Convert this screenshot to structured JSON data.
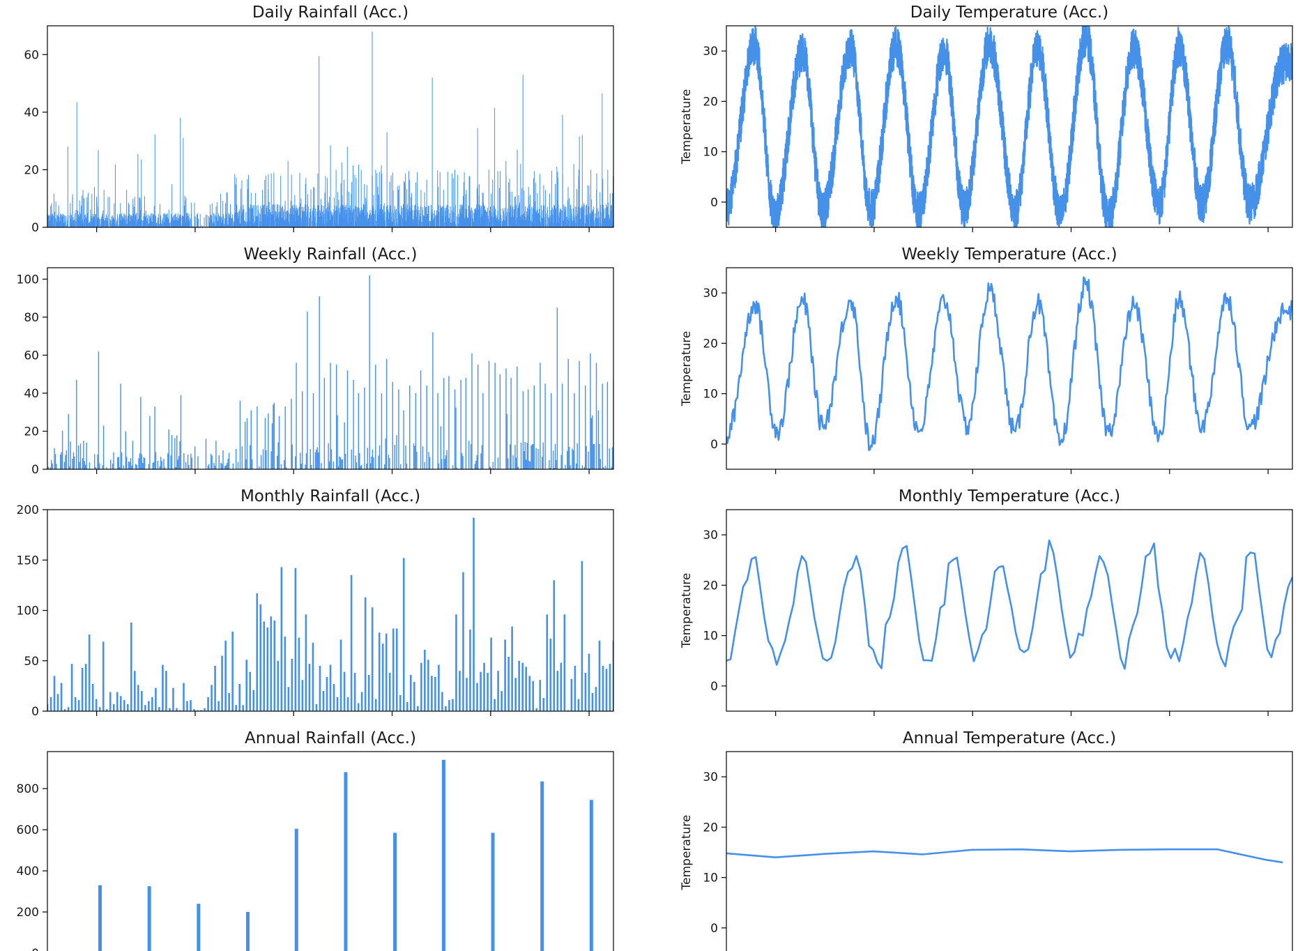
{
  "colors": {
    "series": "#4591ea",
    "frame": "#000000",
    "text": "#1a1a1a",
    "background": "#ffffff"
  },
  "chart_data": [
    {
      "id": "daily_rainfall",
      "type": "bar",
      "title": "Daily Rainfall (Acc.)",
      "ylabel": "",
      "ylim": [
        0,
        70
      ],
      "yticks": [
        0,
        20,
        40,
        60
      ],
      "xticks_count": 6,
      "note": "~4000 daily bars, values approximate",
      "values": [],
      "peaks": [
        [
          0.003,
          4.2
        ],
        [
          0.015,
          9
        ],
        [
          0.02,
          7.6
        ],
        [
          0.036,
          28
        ],
        [
          0.052,
          43.5
        ],
        [
          0.063,
          13
        ],
        [
          0.07,
          10.5
        ],
        [
          0.083,
          14
        ],
        [
          0.09,
          26.8
        ],
        [
          0.1,
          13
        ],
        [
          0.11,
          10.5
        ],
        [
          0.12,
          21.8
        ],
        [
          0.14,
          13
        ],
        [
          0.16,
          25.5
        ],
        [
          0.166,
          23.5
        ],
        [
          0.19,
          32.3
        ],
        [
          0.22,
          15
        ],
        [
          0.235,
          38
        ],
        [
          0.24,
          31
        ],
        [
          0.26,
          8.5
        ],
        [
          0.3,
          8.7
        ],
        [
          0.31,
          9.2
        ],
        [
          0.36,
          12
        ],
        [
          0.38,
          13
        ],
        [
          0.384,
          16.5
        ],
        [
          0.386,
          18
        ],
        [
          0.39,
          13.2
        ],
        [
          0.4,
          19
        ],
        [
          0.42,
          9.2
        ],
        [
          0.425,
          23
        ],
        [
          0.46,
          11.5
        ],
        [
          0.47,
          14
        ],
        [
          0.48,
          59.5
        ],
        [
          0.49,
          12
        ],
        [
          0.5,
          28.5
        ],
        [
          0.51,
          20
        ],
        [
          0.52,
          22.5
        ],
        [
          0.53,
          28
        ],
        [
          0.54,
          21.5
        ],
        [
          0.55,
          21.8
        ],
        [
          0.56,
          15
        ],
        [
          0.574,
          68
        ],
        [
          0.58,
          20
        ],
        [
          0.59,
          21.5
        ],
        [
          0.6,
          33
        ],
        [
          0.61,
          19
        ],
        [
          0.62,
          13
        ],
        [
          0.63,
          16
        ],
        [
          0.64,
          16.5
        ],
        [
          0.66,
          13
        ],
        [
          0.67,
          16.5
        ],
        [
          0.68,
          52
        ],
        [
          0.69,
          14
        ],
        [
          0.7,
          13
        ],
        [
          0.72,
          20
        ],
        [
          0.74,
          13
        ],
        [
          0.76,
          34.5
        ],
        [
          0.77,
          12
        ],
        [
          0.78,
          20
        ],
        [
          0.79,
          41.5
        ],
        [
          0.8,
          19.5
        ],
        [
          0.81,
          23
        ],
        [
          0.83,
          27
        ],
        [
          0.836,
          22
        ],
        [
          0.84,
          53
        ],
        [
          0.85,
          14
        ],
        [
          0.86,
          19.5
        ],
        [
          0.87,
          18.5
        ],
        [
          0.88,
          13
        ],
        [
          0.9,
          21
        ],
        [
          0.91,
          39
        ],
        [
          0.92,
          14
        ],
        [
          0.93,
          22
        ],
        [
          0.94,
          31.5
        ],
        [
          0.945,
          32
        ],
        [
          0.96,
          20
        ],
        [
          0.97,
          13
        ],
        [
          0.98,
          46.5
        ],
        [
          0.99,
          20
        ],
        [
          1.0,
          18
        ]
      ]
    },
    {
      "id": "daily_temperature",
      "type": "line",
      "title": "Daily Temperature (Acc.)",
      "ylabel": "Temperature",
      "ylim": [
        -5,
        35
      ],
      "yticks": [
        0,
        10,
        20,
        30
      ],
      "xticks_count": 6,
      "note": "~4000 daily points, noisy seasonal cycle, values approximate",
      "x": [],
      "values": [],
      "peaks": [
        [
          0.05,
          31.2
        ],
        [
          0.135,
          30
        ],
        [
          0.22,
          30.5
        ],
        [
          0.3,
          31
        ],
        [
          0.385,
          30
        ],
        [
          0.465,
          31.5
        ],
        [
          0.55,
          30.5
        ],
        [
          0.635,
          33
        ],
        [
          0.72,
          30.5
        ],
        [
          0.8,
          31
        ],
        [
          0.885,
          31.5
        ],
        [
          0.985,
          27.5
        ]
      ],
      "troughs": [
        [
          0.0,
          -1
        ],
        [
          0.085,
          -2.5
        ],
        [
          0.17,
          -2
        ],
        [
          0.255,
          -1.5
        ],
        [
          0.34,
          -2
        ],
        [
          0.42,
          -1.5
        ],
        [
          0.51,
          -1.5
        ],
        [
          0.59,
          -2.5
        ],
        [
          0.675,
          -3.5
        ],
        [
          0.765,
          -0.5
        ],
        [
          0.84,
          -0.5
        ],
        [
          0.925,
          -0.5
        ]
      ]
    },
    {
      "id": "weekly_rainfall",
      "type": "bar",
      "title": "Weekly Rainfall (Acc.)",
      "ylabel": "",
      "ylim": [
        0,
        106
      ],
      "yticks": [
        0,
        20,
        40,
        60,
        80,
        100
      ],
      "xticks_count": 6,
      "note": "~570 weekly bars, values approximate",
      "values": [],
      "peaks": [
        [
          0.012,
          11
        ],
        [
          0.025,
          9
        ],
        [
          0.038,
          29
        ],
        [
          0.052,
          47
        ],
        [
          0.063,
          15
        ],
        [
          0.07,
          14
        ],
        [
          0.09,
          62
        ],
        [
          0.1,
          23
        ],
        [
          0.13,
          45
        ],
        [
          0.15,
          15
        ],
        [
          0.165,
          38
        ],
        [
          0.18,
          28
        ],
        [
          0.19,
          33
        ],
        [
          0.22,
          18
        ],
        [
          0.235,
          39
        ],
        [
          0.26,
          12
        ],
        [
          0.28,
          16
        ],
        [
          0.31,
          10
        ],
        [
          0.34,
          36
        ],
        [
          0.35,
          25
        ],
        [
          0.36,
          31
        ],
        [
          0.37,
          33
        ],
        [
          0.385,
          27
        ],
        [
          0.4,
          35
        ],
        [
          0.41,
          28
        ],
        [
          0.42,
          33
        ],
        [
          0.43,
          37
        ],
        [
          0.44,
          56
        ],
        [
          0.45,
          41
        ],
        [
          0.46,
          83
        ],
        [
          0.47,
          40
        ],
        [
          0.48,
          91
        ],
        [
          0.49,
          48
        ],
        [
          0.5,
          56
        ],
        [
          0.51,
          55
        ],
        [
          0.53,
          52
        ],
        [
          0.54,
          47
        ],
        [
          0.55,
          40
        ],
        [
          0.56,
          43
        ],
        [
          0.57,
          102
        ],
        [
          0.58,
          55
        ],
        [
          0.59,
          40
        ],
        [
          0.6,
          58
        ],
        [
          0.61,
          46
        ],
        [
          0.62,
          42
        ],
        [
          0.63,
          31
        ],
        [
          0.64,
          44
        ],
        [
          0.65,
          40
        ],
        [
          0.66,
          52
        ],
        [
          0.67,
          44
        ],
        [
          0.68,
          72
        ],
        [
          0.69,
          40
        ],
        [
          0.7,
          48
        ],
        [
          0.71,
          49
        ],
        [
          0.72,
          42
        ],
        [
          0.73,
          47
        ],
        [
          0.74,
          48
        ],
        [
          0.75,
          61
        ],
        [
          0.76,
          55
        ],
        [
          0.77,
          40
        ],
        [
          0.78,
          57
        ],
        [
          0.79,
          56
        ],
        [
          0.8,
          50
        ],
        [
          0.81,
          53
        ],
        [
          0.82,
          48
        ],
        [
          0.83,
          54
        ],
        [
          0.84,
          41
        ],
        [
          0.85,
          42
        ],
        [
          0.86,
          44
        ],
        [
          0.87,
          56
        ],
        [
          0.88,
          45
        ],
        [
          0.89,
          40
        ],
        [
          0.9,
          85
        ],
        [
          0.91,
          45
        ],
        [
          0.92,
          58
        ],
        [
          0.93,
          40
        ],
        [
          0.94,
          57
        ],
        [
          0.95,
          44
        ],
        [
          0.96,
          61
        ],
        [
          0.97,
          56
        ],
        [
          0.98,
          45
        ],
        [
          0.99,
          46
        ],
        [
          1.0,
          47
        ]
      ]
    },
    {
      "id": "weekly_temperature",
      "type": "line",
      "title": "Weekly Temperature (Acc.)",
      "ylabel": "Temperature",
      "ylim": [
        -5,
        35
      ],
      "yticks": [
        0,
        10,
        20,
        30
      ],
      "xticks_count": 6,
      "note": "~570 weekly points, values approximate",
      "x": [],
      "values": [],
      "peaks": [
        [
          0.05,
          27.7
        ],
        [
          0.135,
          28.5
        ],
        [
          0.22,
          28.5
        ],
        [
          0.3,
          29.3
        ],
        [
          0.385,
          28.5
        ],
        [
          0.465,
          30.5
        ],
        [
          0.55,
          28
        ],
        [
          0.635,
          31.7
        ],
        [
          0.72,
          27.5
        ],
        [
          0.8,
          28.5
        ],
        [
          0.885,
          29
        ],
        [
          0.985,
          26.5
        ]
      ],
      "troughs": [
        [
          0.0,
          1.5
        ],
        [
          0.09,
          2.5
        ],
        [
          0.17,
          3.5
        ],
        [
          0.255,
          -0.3
        ],
        [
          0.34,
          2.5
        ],
        [
          0.425,
          3.5
        ],
        [
          0.51,
          2.5
        ],
        [
          0.59,
          0.3
        ],
        [
          0.675,
          2.5
        ],
        [
          0.765,
          1.5
        ],
        [
          0.84,
          3.5
        ],
        [
          0.925,
          3.5
        ]
      ]
    },
    {
      "id": "monthly_rainfall",
      "type": "bar",
      "title": "Monthly Rainfall (Acc.)",
      "ylabel": "",
      "ylim": [
        0,
        200
      ],
      "yticks": [
        0,
        50,
        100,
        150,
        200
      ],
      "xticks_count": 6,
      "values": [
        7,
        14,
        35,
        17,
        28,
        2,
        4,
        47,
        14,
        11,
        43,
        47,
        76,
        27,
        12,
        4,
        69,
        2,
        19,
        7,
        19,
        15,
        11,
        7,
        88,
        40,
        26,
        20,
        6,
        10,
        14,
        23,
        4,
        46,
        40,
        3,
        23,
        3,
        1,
        28,
        10,
        11,
        2,
        1,
        1,
        3,
        14,
        26,
        45,
        10,
        55,
        70,
        18,
        79,
        6,
        27,
        6,
        51,
        39,
        21,
        117,
        106,
        89,
        83,
        94,
        90,
        50,
        143,
        74,
        24,
        52,
        142,
        73,
        31,
        96,
        47,
        68,
        7,
        45,
        20,
        34,
        46,
        27,
        14,
        71,
        39,
        14,
        135,
        38,
        8,
        19,
        113,
        36,
        103,
        12,
        78,
        67,
        77,
        38,
        82,
        82,
        16,
        152,
        9,
        36,
        29,
        5,
        48,
        61,
        51,
        35,
        34,
        46,
        19,
        5,
        11,
        12,
        96,
        40,
        138,
        33,
        81,
        192,
        28,
        39,
        48,
        38,
        73,
        12,
        40,
        20,
        71,
        54,
        84,
        33,
        50,
        48,
        44,
        35,
        30,
        3,
        31,
        13,
        96,
        72,
        130,
        40,
        48,
        96,
        1,
        32,
        45,
        12,
        149,
        38,
        57,
        18,
        24,
        70,
        45,
        42,
        47,
        70
      ]
    },
    {
      "id": "monthly_temperature",
      "type": "line",
      "title": "Monthly Temperature (Acc.)",
      "ylabel": "Temperature",
      "ylim": [
        -5,
        35
      ],
      "yticks": [
        0,
        10,
        20,
        30
      ],
      "xticks_count": 6,
      "values": [
        5.0,
        5.3,
        10.4,
        15.1,
        19.7,
        21.1,
        25.2,
        25.6,
        19.9,
        13.8,
        9.0,
        7.4,
        4.2,
        6.7,
        9.0,
        13.0,
        16.3,
        22.6,
        25.8,
        24.6,
        19.2,
        13.5,
        9.4,
        5.5,
        5.0,
        5.6,
        8.8,
        14.3,
        19.4,
        22.6,
        23.4,
        25.8,
        22.9,
        16.2,
        8.0,
        7.2,
        4.7,
        3.5,
        12.2,
        13.7,
        17.5,
        24.5,
        27.3,
        27.8,
        21.9,
        15.5,
        9.0,
        5.1,
        5.1,
        5.0,
        9.4,
        15.5,
        16.2,
        24.3,
        25.0,
        25.5,
        20.2,
        14.3,
        9.2,
        4.9,
        7.1,
        10.1,
        11.3,
        16.8,
        22.7,
        23.6,
        23.8,
        19.5,
        15.6,
        10.6,
        7.3,
        6.7,
        7.3,
        11.3,
        16.8,
        22.2,
        23.0,
        28.9,
        26.4,
        21.3,
        15.1,
        10.0,
        5.6,
        6.7,
        10.4,
        10.0,
        15.3,
        17.8,
        22.2,
        25.8,
        24.5,
        21.9,
        16.2,
        11.1,
        5.6,
        3.4,
        9.2,
        12.1,
        14.4,
        19.5,
        25.7,
        26.3,
        28.3,
        19.6,
        14.8,
        7.7,
        5.5,
        7.4,
        4.9,
        8.7,
        13.5,
        16.5,
        22.1,
        26.4,
        25.2,
        20.2,
        13.6,
        8.5,
        5.5,
        3.9,
        8.7,
        11.8,
        13.5,
        15.2,
        25.6,
        26.5,
        26.3,
        19.5,
        13.4,
        7.3,
        5.7,
        9.2,
        10.5,
        15.9,
        19.7,
        21.6
      ]
    },
    {
      "id": "annual_rainfall",
      "type": "bar",
      "title": "Annual Rainfall (Acc.)",
      "ylabel": "",
      "ylim": [
        0,
        980
      ],
      "yticks": [
        0,
        200,
        400,
        600,
        800
      ],
      "xticks_count": 6,
      "x": [
        0.007,
        0.093,
        0.18,
        0.267,
        0.354,
        0.44,
        0.527,
        0.614,
        0.7,
        0.787,
        0.874,
        0.961
      ],
      "values": [
        10,
        330,
        325,
        240,
        200,
        605,
        880,
        585,
        940,
        585,
        835,
        745
      ]
    },
    {
      "id": "annual_temperature",
      "type": "line",
      "title": "Annual Temperature (Acc.)",
      "ylabel": "Temperature",
      "ylim": [
        -5,
        35
      ],
      "yticks": [
        0,
        10,
        20,
        30
      ],
      "xticks_count": 6,
      "x": [
        0.0,
        0.087,
        0.174,
        0.26,
        0.347,
        0.434,
        0.52,
        0.607,
        0.694,
        0.78,
        0.867,
        0.954,
        0.983
      ],
      "values": [
        14.8,
        14.0,
        14.7,
        15.2,
        14.6,
        15.5,
        15.6,
        15.2,
        15.5,
        15.6,
        15.6,
        13.5,
        13.0
      ]
    }
  ]
}
